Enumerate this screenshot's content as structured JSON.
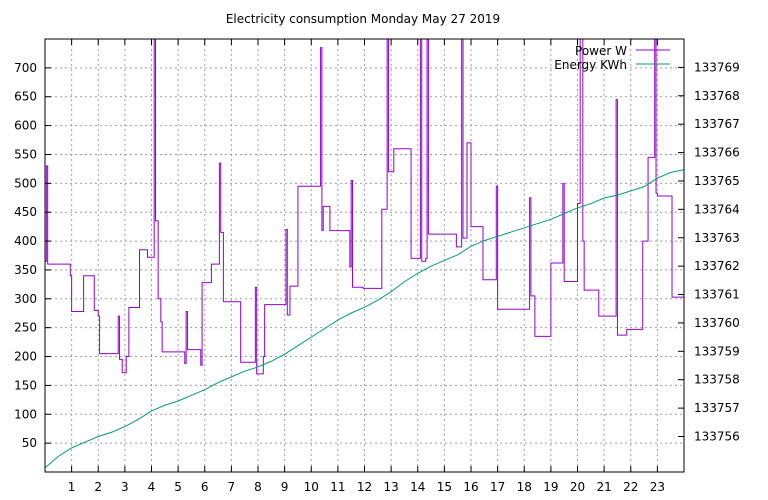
{
  "chart_data": {
    "type": "line",
    "title": "Electricity consumption Monday May 27 2019",
    "x_ticks": [
      1,
      2,
      3,
      4,
      5,
      6,
      7,
      8,
      9,
      10,
      11,
      12,
      13,
      14,
      15,
      16,
      17,
      18,
      19,
      20,
      21,
      22,
      23
    ],
    "xlim": [
      0,
      24
    ],
    "y_left": {
      "ylim": [
        0,
        750
      ],
      "ticks": [
        50,
        100,
        150,
        200,
        250,
        300,
        350,
        400,
        450,
        500,
        550,
        600,
        650,
        700
      ]
    },
    "y_right": {
      "ylim": [
        133754.75,
        133770.0
      ],
      "ticks": [
        133756,
        133757,
        133758,
        133759,
        133760,
        133761,
        133762,
        133763,
        133764,
        133765,
        133766,
        133767,
        133768,
        133769
      ]
    },
    "grid": true,
    "legend_position": "top-right",
    "series": [
      {
        "name": "Power W",
        "axis": "left",
        "color": "#9400d3",
        "step": true,
        "points": [
          [
            0.0,
            365
          ],
          [
            0.05,
            530
          ],
          [
            0.1,
            360
          ],
          [
            0.8,
            360
          ],
          [
            0.95,
            340
          ],
          [
            1.0,
            278
          ],
          [
            1.4,
            278
          ],
          [
            1.45,
            340
          ],
          [
            1.8,
            340
          ],
          [
            1.85,
            280
          ],
          [
            2.0,
            270
          ],
          [
            2.05,
            205
          ],
          [
            2.7,
            205
          ],
          [
            2.75,
            270
          ],
          [
            2.8,
            195
          ],
          [
            2.9,
            172
          ],
          [
            3.05,
            200
          ],
          [
            3.15,
            285
          ],
          [
            3.5,
            285
          ],
          [
            3.55,
            385
          ],
          [
            3.8,
            385
          ],
          [
            3.85,
            372
          ],
          [
            4.05,
            372
          ],
          [
            4.1,
            760
          ],
          [
            4.15,
            435
          ],
          [
            4.25,
            300
          ],
          [
            4.35,
            260
          ],
          [
            4.4,
            208
          ],
          [
            5.2,
            208
          ],
          [
            5.25,
            188
          ],
          [
            5.3,
            278
          ],
          [
            5.35,
            212
          ],
          [
            5.8,
            212
          ],
          [
            5.85,
            185
          ],
          [
            5.9,
            328
          ],
          [
            6.2,
            328
          ],
          [
            6.25,
            360
          ],
          [
            6.5,
            360
          ],
          [
            6.55,
            535
          ],
          [
            6.6,
            415
          ],
          [
            6.7,
            295
          ],
          [
            7.3,
            295
          ],
          [
            7.35,
            190
          ],
          [
            7.85,
            190
          ],
          [
            7.9,
            320
          ],
          [
            7.95,
            170
          ],
          [
            8.2,
            200
          ],
          [
            8.25,
            290
          ],
          [
            9.0,
            290
          ],
          [
            9.05,
            420
          ],
          [
            9.1,
            272
          ],
          [
            9.2,
            322
          ],
          [
            9.45,
            322
          ],
          [
            9.5,
            495
          ],
          [
            10.3,
            495
          ],
          [
            10.35,
            735
          ],
          [
            10.4,
            418
          ],
          [
            10.45,
            460
          ],
          [
            10.7,
            418
          ],
          [
            11.4,
            418
          ],
          [
            11.45,
            355
          ],
          [
            11.5,
            505
          ],
          [
            11.55,
            320
          ],
          [
            11.95,
            318
          ],
          [
            12.6,
            318
          ],
          [
            12.65,
            455
          ],
          [
            12.8,
            455
          ],
          [
            12.85,
            760
          ],
          [
            12.9,
            520
          ],
          [
            13.1,
            560
          ],
          [
            13.7,
            560
          ],
          [
            13.75,
            370
          ],
          [
            14.05,
            370
          ],
          [
            14.1,
            760
          ],
          [
            14.15,
            365
          ],
          [
            14.3,
            370
          ],
          [
            14.35,
            760
          ],
          [
            14.4,
            412
          ],
          [
            15.4,
            412
          ],
          [
            15.45,
            390
          ],
          [
            15.6,
            390
          ],
          [
            15.65,
            760
          ],
          [
            15.7,
            405
          ],
          [
            15.85,
            570
          ],
          [
            16.0,
            425
          ],
          [
            16.4,
            425
          ],
          [
            16.45,
            333
          ],
          [
            16.9,
            333
          ],
          [
            16.95,
            495
          ],
          [
            17.0,
            282
          ],
          [
            18.15,
            282
          ],
          [
            18.2,
            475
          ],
          [
            18.25,
            305
          ],
          [
            18.4,
            235
          ],
          [
            18.95,
            235
          ],
          [
            19.0,
            362
          ],
          [
            19.4,
            362
          ],
          [
            19.45,
            500
          ],
          [
            19.5,
            330
          ],
          [
            19.95,
            330
          ],
          [
            20.0,
            465
          ],
          [
            20.1,
            760
          ],
          [
            20.2,
            400
          ],
          [
            20.25,
            315
          ],
          [
            20.75,
            315
          ],
          [
            20.8,
            270
          ],
          [
            21.4,
            270
          ],
          [
            21.45,
            645
          ],
          [
            21.5,
            237
          ],
          [
            21.8,
            237
          ],
          [
            21.85,
            247
          ],
          [
            22.4,
            247
          ],
          [
            22.45,
            400
          ],
          [
            22.6,
            400
          ],
          [
            22.65,
            545
          ],
          [
            22.85,
            545
          ],
          [
            22.9,
            760
          ],
          [
            22.95,
            483
          ],
          [
            23.0,
            478
          ],
          [
            23.5,
            478
          ],
          [
            23.55,
            303
          ],
          [
            24.0,
            303
          ]
        ]
      },
      {
        "name": "Energy KWh",
        "axis": "right",
        "color": "#009e73",
        "step": false,
        "points": [
          [
            0.0,
            133754.9
          ],
          [
            0.5,
            133755.3
          ],
          [
            1.0,
            133755.6
          ],
          [
            1.5,
            133755.8
          ],
          [
            2.0,
            133756.0
          ],
          [
            2.5,
            133756.15
          ],
          [
            3.0,
            133756.35
          ],
          [
            3.5,
            133756.6
          ],
          [
            4.0,
            133756.9
          ],
          [
            4.5,
            133757.1
          ],
          [
            5.0,
            133757.25
          ],
          [
            5.5,
            133757.45
          ],
          [
            6.0,
            133757.65
          ],
          [
            6.5,
            133757.9
          ],
          [
            7.0,
            133758.1
          ],
          [
            7.5,
            133758.3
          ],
          [
            8.0,
            133758.45
          ],
          [
            8.5,
            133758.65
          ],
          [
            9.0,
            133758.9
          ],
          [
            9.5,
            133759.2
          ],
          [
            10.0,
            133759.5
          ],
          [
            10.5,
            133759.8
          ],
          [
            11.0,
            133760.1
          ],
          [
            11.5,
            133760.35
          ],
          [
            12.0,
            133760.55
          ],
          [
            12.5,
            133760.8
          ],
          [
            13.0,
            133761.1
          ],
          [
            13.5,
            133761.45
          ],
          [
            14.0,
            133761.75
          ],
          [
            14.5,
            133762.0
          ],
          [
            15.0,
            133762.2
          ],
          [
            15.5,
            133762.4
          ],
          [
            16.0,
            133762.7
          ],
          [
            16.5,
            133762.9
          ],
          [
            17.0,
            133763.05
          ],
          [
            17.5,
            133763.2
          ],
          [
            18.0,
            133763.35
          ],
          [
            18.5,
            133763.5
          ],
          [
            19.0,
            133763.65
          ],
          [
            19.5,
            133763.85
          ],
          [
            20.0,
            133764.05
          ],
          [
            20.5,
            133764.2
          ],
          [
            21.0,
            133764.4
          ],
          [
            21.5,
            133764.5
          ],
          [
            22.0,
            133764.65
          ],
          [
            22.5,
            133764.8
          ],
          [
            23.0,
            133765.1
          ],
          [
            23.5,
            133765.3
          ],
          [
            24.0,
            133765.4
          ]
        ]
      }
    ]
  }
}
